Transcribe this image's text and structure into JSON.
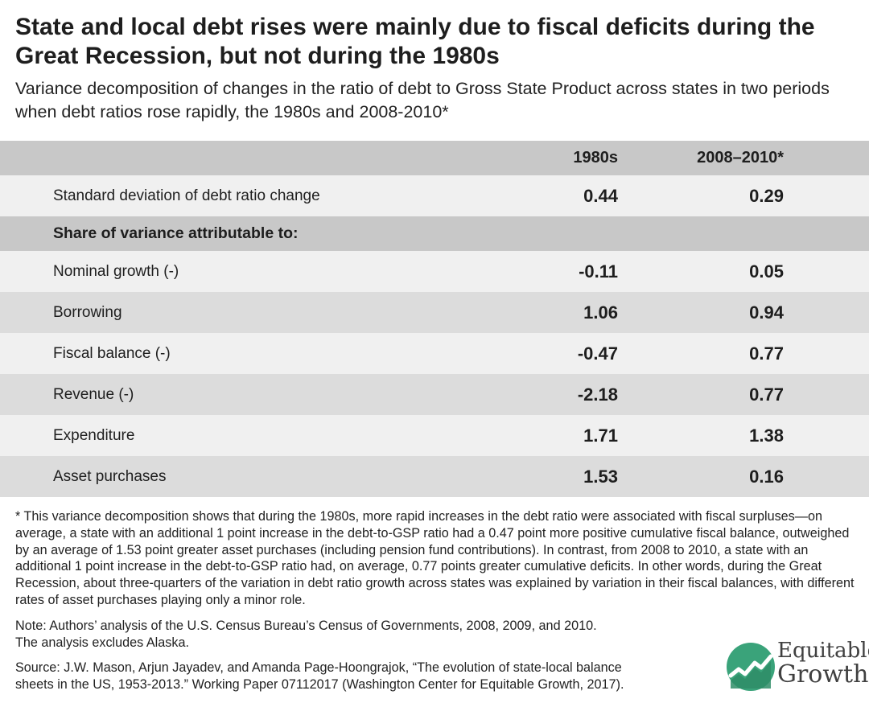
{
  "title": "State and local debt rises were mainly due to fiscal deficits during the Great Recession, but not during the 1980s",
  "subtitle": "Variance decomposition of changes in the ratio of debt to Gross State Product across states in two periods when debt ratios rose rapidly, the 1980s and 2008-2010*",
  "chart_data": {
    "type": "table",
    "columns": [
      "",
      "1980s",
      "2008–2010*"
    ],
    "std_row": {
      "label": "Standard deviation of debt ratio change",
      "v1980s": "0.44",
      "v2008": "0.29"
    },
    "section_label": "Share of variance attributable to:",
    "rows": [
      {
        "label": "Nominal growth (-)",
        "v1980s": "-0.11",
        "v2008": "0.05"
      },
      {
        "label": "Borrowing",
        "v1980s": "1.06",
        "v2008": "0.94"
      },
      {
        "label": "Fiscal balance (-)",
        "v1980s": "-0.47",
        "v2008": "0.77"
      },
      {
        "label": "Revenue (-)",
        "v1980s": "-2.18",
        "v2008": "0.77"
      },
      {
        "label": "Expenditure",
        "v1980s": "1.71",
        "v2008": "1.38"
      },
      {
        "label": "Asset purchases",
        "v1980s": "1.53",
        "v2008": "0.16"
      }
    ]
  },
  "footnote": "* This variance decomposition shows that during the 1980s, more rapid increases in the debt ratio were associated with fiscal surpluses—on average, a state with an additional 1 point increase in the debt-to-GSP ratio had a 0.47 point more positive cumulative fiscal balance, outweighed by an average of 1.53 point greater asset purchases (including pension fund contributions). In contrast, from 2008 to 2010, a state with an additional 1 point increase in the debt-to-GSP ratio had, on average, 0.77 points greater cumulative deficits. In other words, during the Great Recession, about three-quarters of the variation in debt ratio growth across states was explained by variation in their fiscal balances, with different rates of asset purchases playing only a minor role.",
  "note_line1": "Note: Authors’ analysis of the U.S. Census Bureau’s Census of Governments, 2008, 2009, and 2010.",
  "note_line2": "The analysis excludes Alaska.",
  "source_line1": "Source: J.W. Mason, Arjun Jayadev, and Amanda Page-Hoongrajok, “The evolution of state-local balance",
  "source_line2": "sheets in the US, 1953-2013.” Working Paper 07112017 (Washington Center for Equitable Growth, 2017).",
  "logo": {
    "line1": "Equitable",
    "line2": "Growth",
    "icon": "growth-chart-icon",
    "color": "#3aa37a"
  }
}
